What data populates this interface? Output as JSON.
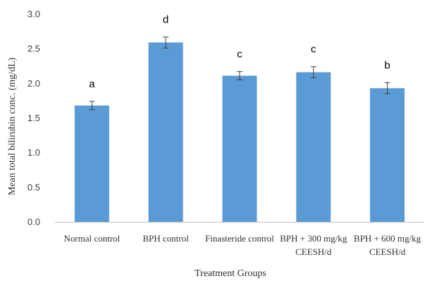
{
  "chart_data": {
    "type": "bar",
    "title": "",
    "xlabel": "Treatment Groups",
    "ylabel": "Mean total bilirubin conc. (mg/dL)",
    "categories": [
      [
        "Normal control"
      ],
      [
        "BPH control"
      ],
      [
        "Finasteride control"
      ],
      [
        "BPH + 300 mg/kg",
        "CEESH/d"
      ],
      [
        "BPH + 600 mg/kg",
        "CEESH/d"
      ]
    ],
    "values": [
      1.68,
      2.59,
      2.11,
      2.16,
      1.93
    ],
    "error": [
      0.06,
      0.08,
      0.06,
      0.08,
      0.08
    ],
    "significance_labels": [
      "a",
      "d",
      "c",
      "c",
      "b"
    ],
    "ylim": [
      0.0,
      3.0
    ],
    "yticks": [
      "0.0",
      "0.5",
      "1.0",
      "1.5",
      "2.0",
      "2.5",
      "3.0"
    ],
    "grid": false,
    "bar_color": "#5b9bd5"
  }
}
